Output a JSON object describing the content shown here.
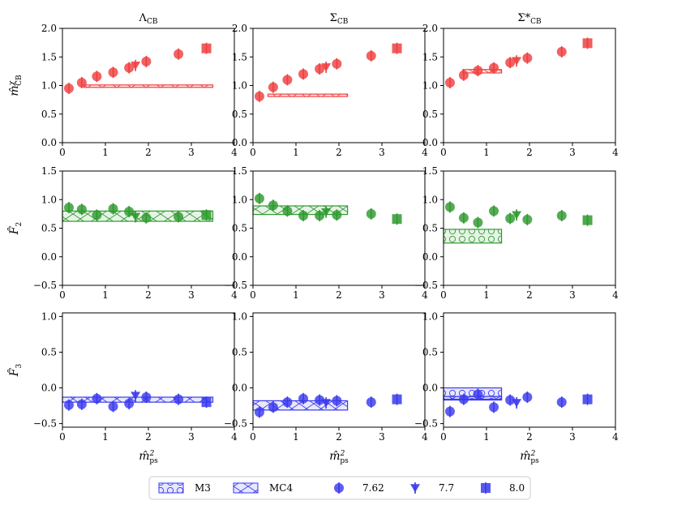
{
  "chart_data": {
    "type": "scatter",
    "layout": "3x3 grid",
    "column_titles": [
      "Λ",
      "Σ",
      "Σ*"
    ],
    "column_title_subscript": "CB",
    "row_ylabels": [
      {
        "base": "m̂",
        "sup": "χ",
        "sub": "CB"
      },
      {
        "base": "F̂",
        "sub": "2"
      },
      {
        "base": "F̂",
        "sub": "3"
      }
    ],
    "xlabel": {
      "base": "m̂",
      "sup": "2",
      "sub": "ps"
    },
    "xlim": [
      0,
      4
    ],
    "xticks": [
      "0",
      "1",
      "2",
      "3",
      "4"
    ],
    "rows": [
      {
        "ylim": [
          0,
          2
        ],
        "yticks": [
          "0.0",
          "0.5",
          "1.0",
          "1.5",
          "2.0"
        ],
        "color": "#ef3f3f"
      },
      {
        "ylim": [
          -0.5,
          1.5
        ],
        "yticks": [
          "−0.5",
          "0.0",
          "0.5",
          "1.0",
          "1.5"
        ],
        "color": "#2f9a2f"
      },
      {
        "ylim": [
          -0.55,
          1.05
        ],
        "yticks": [
          "−0.5",
          "0.0",
          "0.5",
          "1.0"
        ],
        "color": "#3a3aee"
      }
    ],
    "panels": [
      {
        "row": 0,
        "col": 0,
        "bands": [
          {
            "name": "MC4",
            "x": [
              0.5,
              3.5
            ],
            "y": [
              0.97,
              1.01
            ]
          }
        ],
        "series": {
          "7.62": [
            [
              0.15,
              0.95
            ],
            [
              0.45,
              1.05
            ],
            [
              0.8,
              1.16
            ],
            [
              1.18,
              1.23
            ],
            [
              1.55,
              1.31
            ],
            [
              1.95,
              1.42
            ],
            [
              2.7,
              1.55
            ]
          ],
          "7.7": [
            [
              1.7,
              1.35
            ]
          ],
          "8.0": [
            [
              3.35,
              1.65
            ]
          ]
        }
      },
      {
        "row": 0,
        "col": 1,
        "bands": [
          {
            "name": "MC4",
            "x": [
              0.35,
              2.2
            ],
            "y": [
              0.82,
              0.85
            ]
          }
        ],
        "series": {
          "7.62": [
            [
              0.15,
              0.81
            ],
            [
              0.47,
              0.97
            ],
            [
              0.8,
              1.1
            ],
            [
              1.17,
              1.2
            ],
            [
              1.55,
              1.29
            ],
            [
              1.95,
              1.38
            ],
            [
              2.75,
              1.52
            ]
          ],
          "7.7": [
            [
              1.7,
              1.32
            ]
          ],
          "8.0": [
            [
              3.35,
              1.65
            ]
          ]
        }
      },
      {
        "row": 0,
        "col": 2,
        "bands": [
          {
            "name": "MC4",
            "x": [
              0.45,
              1.35
            ],
            "y": [
              1.22,
              1.28
            ]
          }
        ],
        "series": {
          "7.62": [
            [
              0.15,
              1.05
            ],
            [
              0.47,
              1.18
            ],
            [
              0.8,
              1.26
            ],
            [
              1.17,
              1.31
            ],
            [
              1.55,
              1.4
            ],
            [
              1.95,
              1.48
            ],
            [
              2.75,
              1.59
            ]
          ],
          "7.7": [
            [
              1.7,
              1.43
            ]
          ],
          "8.0": [
            [
              3.35,
              1.74
            ]
          ]
        }
      },
      {
        "row": 1,
        "col": 0,
        "bands": [
          {
            "name": "MC4",
            "x": [
              0.0,
              3.5
            ],
            "y": [
              0.62,
              0.8
            ]
          }
        ],
        "series": {
          "7.62": [
            [
              0.15,
              0.86
            ],
            [
              0.45,
              0.83
            ],
            [
              0.8,
              0.73
            ],
            [
              1.18,
              0.84
            ],
            [
              1.55,
              0.79
            ],
            [
              1.95,
              0.68
            ],
            [
              2.7,
              0.7
            ]
          ],
          "7.7": [
            [
              1.7,
              0.7
            ]
          ],
          "8.0": [
            [
              3.35,
              0.73
            ]
          ]
        }
      },
      {
        "row": 1,
        "col": 1,
        "bands": [
          {
            "name": "MC4",
            "x": [
              0.0,
              2.2
            ],
            "y": [
              0.74,
              0.89
            ]
          }
        ],
        "series": {
          "7.62": [
            [
              0.15,
              1.02
            ],
            [
              0.47,
              0.9
            ],
            [
              0.8,
              0.8
            ],
            [
              1.17,
              0.72
            ],
            [
              1.55,
              0.72
            ],
            [
              1.95,
              0.73
            ],
            [
              2.75,
              0.75
            ]
          ],
          "7.7": [
            [
              1.7,
              0.78
            ]
          ],
          "8.0": [
            [
              3.35,
              0.66
            ]
          ]
        }
      },
      {
        "row": 1,
        "col": 2,
        "bands": [
          {
            "name": "M3",
            "x": [
              0.0,
              1.35
            ],
            "y": [
              0.24,
              0.48
            ]
          }
        ],
        "series": {
          "7.62": [
            [
              0.15,
              0.87
            ],
            [
              0.47,
              0.68
            ],
            [
              0.8,
              0.6
            ],
            [
              1.17,
              0.8
            ],
            [
              1.55,
              0.67
            ],
            [
              1.95,
              0.65
            ],
            [
              2.75,
              0.72
            ]
          ],
          "7.7": [
            [
              1.7,
              0.73
            ]
          ],
          "8.0": [
            [
              3.35,
              0.64
            ]
          ]
        }
      },
      {
        "row": 2,
        "col": 0,
        "bands": [
          {
            "name": "MC4",
            "x": [
              0.0,
              3.5
            ],
            "y": [
              -0.2,
              -0.13
            ]
          }
        ],
        "series": {
          "7.62": [
            [
              0.15,
              -0.24
            ],
            [
              0.45,
              -0.23
            ],
            [
              0.8,
              -0.15
            ],
            [
              1.18,
              -0.26
            ],
            [
              1.55,
              -0.22
            ],
            [
              1.95,
              -0.13
            ],
            [
              2.7,
              -0.16
            ]
          ],
          "7.7": [
            [
              1.7,
              -0.11
            ]
          ],
          "8.0": [
            [
              3.35,
              -0.2
            ]
          ]
        }
      },
      {
        "row": 2,
        "col": 1,
        "bands": [
          {
            "name": "MC4",
            "x": [
              0.0,
              2.2
            ],
            "y": [
              -0.31,
              -0.18
            ]
          }
        ],
        "series": {
          "7.62": [
            [
              0.15,
              -0.34
            ],
            [
              0.47,
              -0.27
            ],
            [
              0.8,
              -0.2
            ],
            [
              1.17,
              -0.15
            ],
            [
              1.55,
              -0.17
            ],
            [
              1.95,
              -0.18
            ],
            [
              2.75,
              -0.2
            ]
          ],
          "7.7": [
            [
              1.7,
              -0.21
            ]
          ],
          "8.0": [
            [
              3.35,
              -0.16
            ]
          ]
        }
      },
      {
        "row": 2,
        "col": 2,
        "bands": [
          {
            "name": "MC4",
            "x": [
              0.0,
              1.35
            ],
            "y": [
              -0.17,
              -0.12
            ]
          },
          {
            "name": "M3",
            "x": [
              0.0,
              1.35
            ],
            "y": [
              -0.16,
              0.0
            ]
          }
        ],
        "series": {
          "7.62": [
            [
              0.15,
              -0.33
            ],
            [
              0.47,
              -0.16
            ],
            [
              0.8,
              -0.09
            ],
            [
              1.17,
              -0.27
            ],
            [
              1.55,
              -0.17
            ],
            [
              1.95,
              -0.13
            ],
            [
              2.75,
              -0.2
            ]
          ],
          "7.7": [
            [
              1.7,
              -0.21
            ]
          ],
          "8.0": [
            [
              3.35,
              -0.16
            ]
          ]
        }
      }
    ],
    "legend": {
      "placement": "bottom-center",
      "entries": [
        "M3",
        "MC4",
        "7.62",
        "7.7",
        "8.0"
      ]
    }
  }
}
